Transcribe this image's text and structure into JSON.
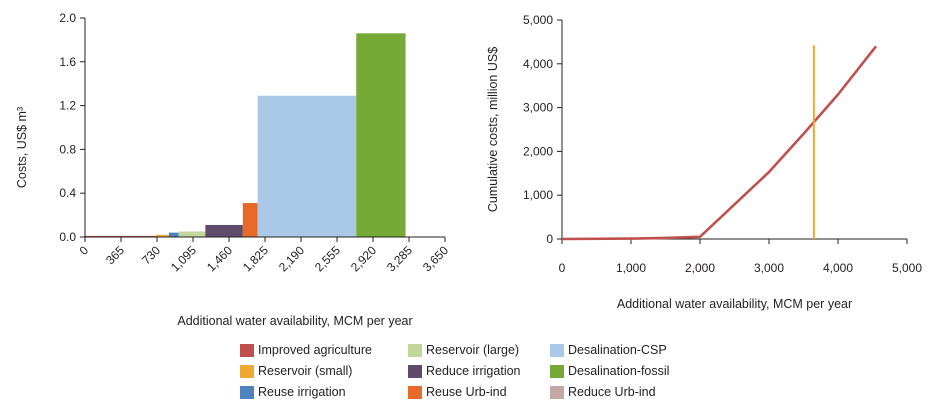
{
  "chart_data": [
    {
      "type": "bar",
      "variant": "variable-width-step",
      "xlabel": "Additional water availability, MCM per year",
      "ylabel": "Costs, US$ m³",
      "xlim": [
        0,
        3650
      ],
      "ylim": [
        0,
        2.0
      ],
      "xticks": [
        "0",
        "365",
        "730",
        "1,095",
        "1,460",
        "1,825",
        "2,190",
        "2,555",
        "2,920",
        "3,285",
        "3,650"
      ],
      "yticks": [
        "0.0",
        "0.4",
        "0.8",
        "1.2",
        "1.6",
        "2.0"
      ],
      "bars": [
        {
          "name": "Improved agriculture",
          "x_start": 0,
          "x_end": 720,
          "value": 0.01
        },
        {
          "name": "Reservoir (small)",
          "x_start": 720,
          "x_end": 850,
          "value": 0.02
        },
        {
          "name": "Reuse irrigation",
          "x_start": 850,
          "x_end": 950,
          "value": 0.04
        },
        {
          "name": "Reservoir (large)",
          "x_start": 950,
          "x_end": 1220,
          "value": 0.05
        },
        {
          "name": "Reduce irrigation",
          "x_start": 1220,
          "x_end": 1600,
          "value": 0.11
        },
        {
          "name": "Reuse Urb-ind",
          "x_start": 1600,
          "x_end": 1750,
          "value": 0.31
        },
        {
          "name": "Desalination-CSP",
          "x_start": 1750,
          "x_end": 2750,
          "value": 1.29
        },
        {
          "name": "Desalination-fossil",
          "x_start": 2750,
          "x_end": 3250,
          "value": 1.86
        }
      ],
      "grid": false
    },
    {
      "type": "line",
      "xlabel": "Additional water availability, MCM per year",
      "ylabel": "Cumulative costs, million US$",
      "xlim": [
        0,
        5000
      ],
      "ylim": [
        0,
        5000
      ],
      "xticks": [
        "0",
        "1,000",
        "2,000",
        "3,000",
        "4,000",
        "5,000"
      ],
      "yticks": [
        "0",
        "1,000",
        "2,000",
        "3,000",
        "4,000",
        "5,000"
      ],
      "series": [
        {
          "x": [
            0,
            1000,
            1500,
            2000,
            2500,
            3000,
            3500,
            4000,
            4550
          ],
          "y": [
            0,
            10,
            25,
            50,
            790,
            1530,
            2400,
            3300,
            4400
          ]
        }
      ],
      "vline": {
        "x": 3650,
        "y_top": 4420
      },
      "grid": false
    }
  ],
  "legend": [
    {
      "label": "Improved agriculture",
      "color": "#c0504d"
    },
    {
      "label": "Reservoir (large)",
      "color": "#c3d69b"
    },
    {
      "label": "Desalination-CSP",
      "color": "#aac8e8"
    },
    {
      "label": "Reservoir (small)",
      "color": "#f0a830"
    },
    {
      "label": "Reduce irrigation",
      "color": "#5f4b6b"
    },
    {
      "label": "Desalination-fossil",
      "color": "#76a935"
    },
    {
      "label": "Reuse irrigation",
      "color": "#4f81bd"
    },
    {
      "label": "Reuse Urb-ind",
      "color": "#e86a28"
    },
    {
      "label": "Reduce Urb-ind",
      "color": "#c4a8a8"
    }
  ],
  "colors": {
    "line": "#c0504d",
    "vline": "#f0a830",
    "axis": "#231f20"
  }
}
